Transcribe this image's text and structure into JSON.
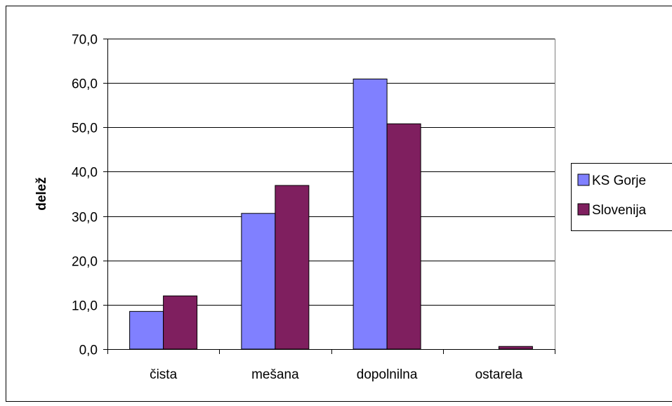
{
  "chart_data": {
    "type": "bar",
    "categories": [
      "čista",
      "mešana",
      "dopolnilna",
      "ostarela"
    ],
    "series": [
      {
        "name": "KS Gorje",
        "values": [
          8.5,
          30.6,
          60.9,
          0.0
        ],
        "color": "#8080ff"
      },
      {
        "name": "Slovenija",
        "values": [
          12.0,
          36.9,
          50.8,
          0.6
        ],
        "color": "#7f1f5f"
      }
    ],
    "title": "",
    "xlabel": "",
    "ylabel": "delež",
    "ylim": [
      0,
      70
    ],
    "yticks": [
      {
        "value": 0,
        "label": "0,0"
      },
      {
        "value": 10,
        "label": "10,0"
      },
      {
        "value": 20,
        "label": "20,0"
      },
      {
        "value": 30,
        "label": "30,0"
      },
      {
        "value": 40,
        "label": "40,0"
      },
      {
        "value": 50,
        "label": "50,0"
      },
      {
        "value": 60,
        "label": "60,0"
      },
      {
        "value": 70,
        "label": "70,0"
      }
    ],
    "grid": true,
    "legend": "right"
  }
}
